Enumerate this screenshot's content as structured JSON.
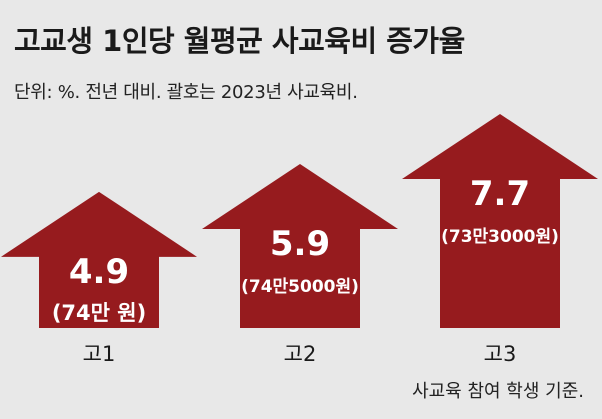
{
  "header": {
    "title": "고교생 1인당 월평균 사교육비 증가율",
    "subtitle": "단위: %. 전년 대비. 괄호는 2023년 사교육비."
  },
  "footnote": "사교육 참여 학생 기준.",
  "colors": {
    "arrow": "#961b1e",
    "background": "#e8e8e8"
  },
  "chart_data": {
    "type": "bar",
    "title": "고교생 1인당 월평균 사교육비 증가율",
    "categories": [
      "고1",
      "고2",
      "고3"
    ],
    "values": [
      4.9,
      5.9,
      7.7
    ],
    "value_labels": [
      "4.9",
      "5.9",
      "7.7"
    ],
    "amount_labels": [
      "(74만 원)",
      "(74만5000원)",
      "(73만3000원)"
    ],
    "unit": "%",
    "bar_shape": "upward-arrow",
    "legend": "none",
    "grid": false
  }
}
